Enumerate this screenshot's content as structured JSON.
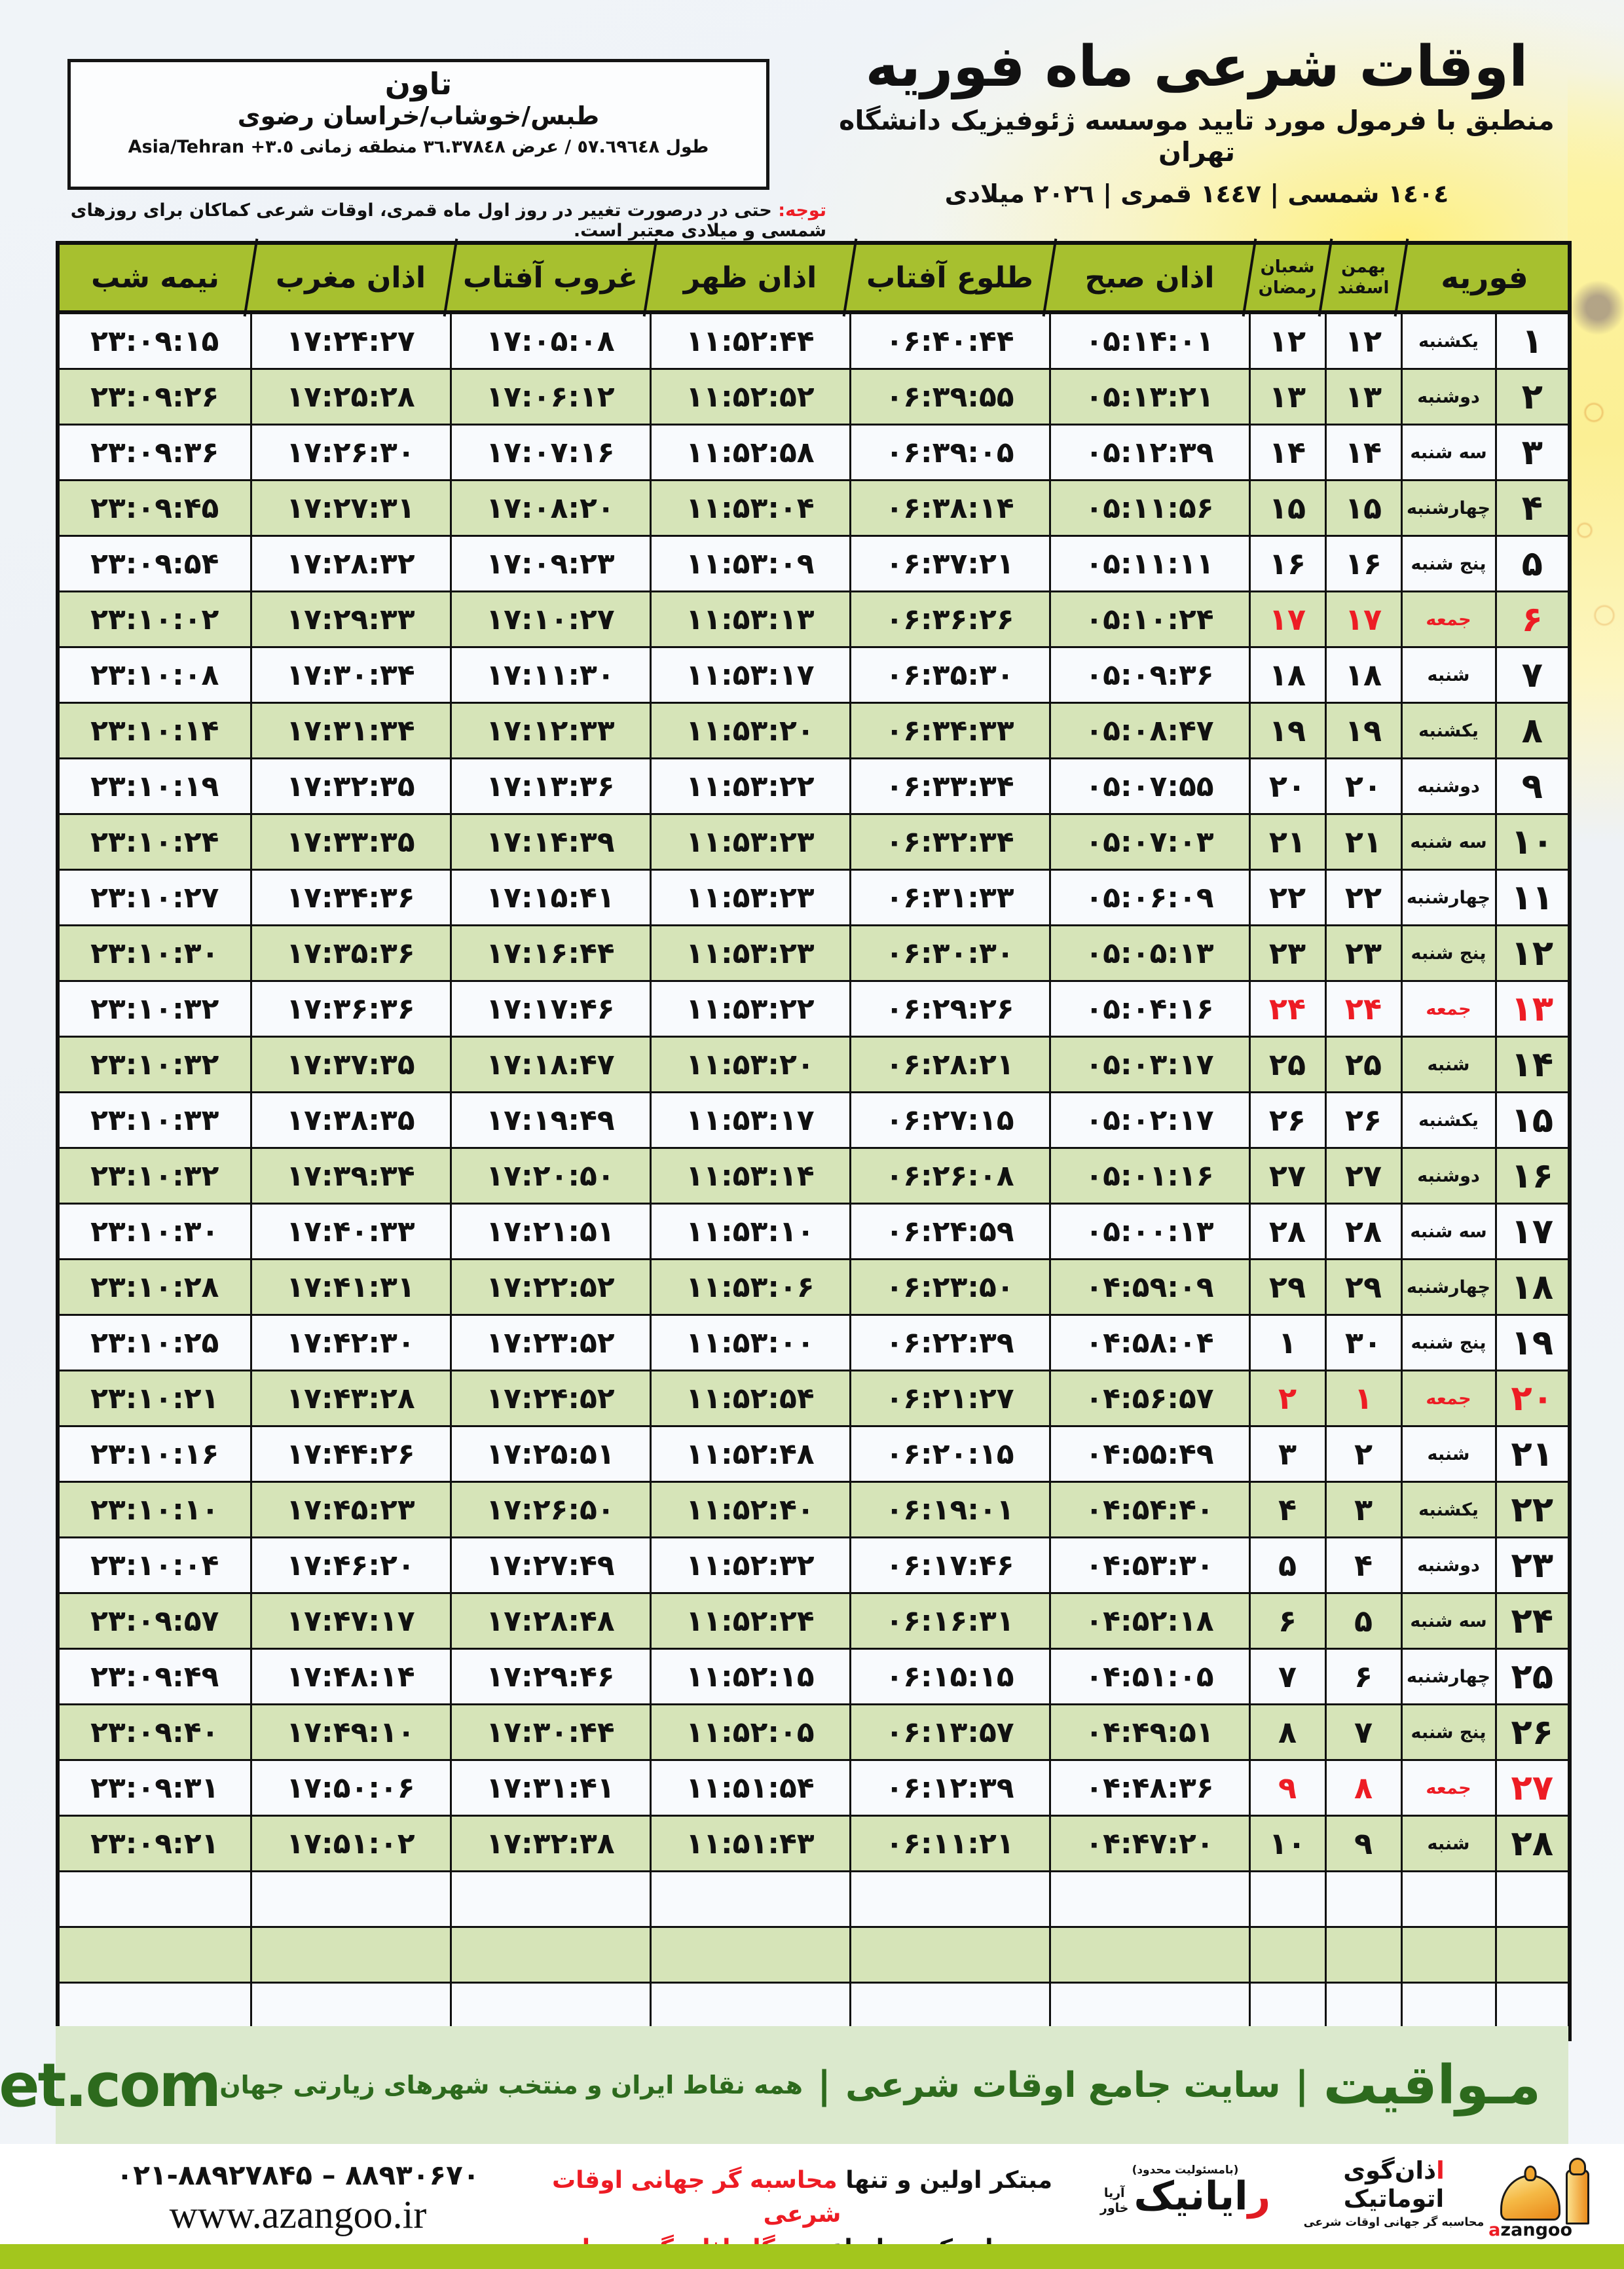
{
  "location_box": {
    "name": "تاون",
    "region": "طبس/خوشاب/خراسان رضوی",
    "geo_fa": "طول ٥٧.٦٩٦٤٨ / عرض ٣٦.٣٧٨٤٨ منطقه زمانی",
    "geo_tz": "Asia/Tehran +٣.٥"
  },
  "masthead": {
    "title": "اوقات شرعی ماه فوریه",
    "subtitle": "منطبق با فرمول مورد تایید موسسه ژئوفیزیک دانشگاه تهران",
    "dates": "١٤٠٤ شمسی | ١٤٤٧ قمری | ٢٠٢٦ میلادی"
  },
  "notice": {
    "label": "توجه:",
    "text": "حتی در درصورت تغییر در روز اول ماه قمری، اوقات شرعی کماکان برای روزهای شمسی و میلادی معتبر است."
  },
  "table": {
    "headers": {
      "february": "فوریه",
      "jalali_top": "بهمن",
      "jalali_bottom": "اسفند",
      "hijri_top": "شعبان",
      "hijri_bottom": "رمضان",
      "fajr": "اذان صبح",
      "sunrise": "طلوع آفتاب",
      "dhuhr": "اذان ظهر",
      "sunset": "غروب آفتاب",
      "maghrib": "اذان مغرب",
      "midnight": "نیمه شب"
    },
    "column_keys": [
      {
        "key": "feb",
        "cls": "c-feb"
      },
      {
        "key": "day",
        "cls": "c-day"
      },
      {
        "key": "jalali",
        "cls": "c-num"
      },
      {
        "key": "hijri",
        "cls": "c-num"
      },
      {
        "key": "fajr",
        "cls": "c-time"
      },
      {
        "key": "sunrise",
        "cls": "c-time"
      },
      {
        "key": "dhuhr",
        "cls": "c-time"
      },
      {
        "key": "sunset",
        "cls": "c-time"
      },
      {
        "key": "maghrib",
        "cls": "c-time"
      },
      {
        "key": "midnight",
        "cls": "c-time"
      }
    ],
    "empty_rows": 3,
    "rows": [
      {
        "feb": "۱",
        "day": "یکشنبه",
        "jalali": "۱۲",
        "hijri": "۱۲",
        "fajr": "۰۵:۱۴:۰۱",
        "sunrise": "۰۶:۴۰:۴۴",
        "dhuhr": "۱۱:۵۲:۴۴",
        "sunset": "۱۷:۰۵:۰۸",
        "maghrib": "۱۷:۲۴:۲۷",
        "midnight": "۲۳:۰۹:۱۵",
        "friday": false
      },
      {
        "feb": "۲",
        "day": "دوشنبه",
        "jalali": "۱۳",
        "hijri": "۱۳",
        "fajr": "۰۵:۱۳:۲۱",
        "sunrise": "۰۶:۳۹:۵۵",
        "dhuhr": "۱۱:۵۲:۵۲",
        "sunset": "۱۷:۰۶:۱۲",
        "maghrib": "۱۷:۲۵:۲۸",
        "midnight": "۲۳:۰۹:۲۶",
        "friday": false
      },
      {
        "feb": "۳",
        "day": "سه شنبه",
        "jalali": "۱۴",
        "hijri": "۱۴",
        "fajr": "۰۵:۱۲:۳۹",
        "sunrise": "۰۶:۳۹:۰۵",
        "dhuhr": "۱۱:۵۲:۵۸",
        "sunset": "۱۷:۰۷:۱۶",
        "maghrib": "۱۷:۲۶:۳۰",
        "midnight": "۲۳:۰۹:۳۶",
        "friday": false
      },
      {
        "feb": "۴",
        "day": "چهارشنبه",
        "jalali": "۱۵",
        "hijri": "۱۵",
        "fajr": "۰۵:۱۱:۵۶",
        "sunrise": "۰۶:۳۸:۱۴",
        "dhuhr": "۱۱:۵۳:۰۴",
        "sunset": "۱۷:۰۸:۲۰",
        "maghrib": "۱۷:۲۷:۳۱",
        "midnight": "۲۳:۰۹:۴۵",
        "friday": false
      },
      {
        "feb": "۵",
        "day": "پنج شنبه",
        "jalali": "۱۶",
        "hijri": "۱۶",
        "fajr": "۰۵:۱۱:۱۱",
        "sunrise": "۰۶:۳۷:۲۱",
        "dhuhr": "۱۱:۵۳:۰۹",
        "sunset": "۱۷:۰۹:۲۳",
        "maghrib": "۱۷:۲۸:۳۲",
        "midnight": "۲۳:۰۹:۵۴",
        "friday": false
      },
      {
        "feb": "۶",
        "day": "جمعه",
        "jalali": "۱۷",
        "hijri": "۱۷",
        "fajr": "۰۵:۱۰:۲۴",
        "sunrise": "۰۶:۳۶:۲۶",
        "dhuhr": "۱۱:۵۳:۱۳",
        "sunset": "۱۷:۱۰:۲۷",
        "maghrib": "۱۷:۲۹:۳۳",
        "midnight": "۲۳:۱۰:۰۲",
        "friday": true
      },
      {
        "feb": "۷",
        "day": "شنبه",
        "jalali": "۱۸",
        "hijri": "۱۸",
        "fajr": "۰۵:۰۹:۳۶",
        "sunrise": "۰۶:۳۵:۳۰",
        "dhuhr": "۱۱:۵۳:۱۷",
        "sunset": "۱۷:۱۱:۳۰",
        "maghrib": "۱۷:۳۰:۳۴",
        "midnight": "۲۳:۱۰:۰۸",
        "friday": false
      },
      {
        "feb": "۸",
        "day": "یکشنبه",
        "jalali": "۱۹",
        "hijri": "۱۹",
        "fajr": "۰۵:۰۸:۴۷",
        "sunrise": "۰۶:۳۴:۳۳",
        "dhuhr": "۱۱:۵۳:۲۰",
        "sunset": "۱۷:۱۲:۳۳",
        "maghrib": "۱۷:۳۱:۳۴",
        "midnight": "۲۳:۱۰:۱۴",
        "friday": false
      },
      {
        "feb": "۹",
        "day": "دوشنبه",
        "jalali": "۲۰",
        "hijri": "۲۰",
        "fajr": "۰۵:۰۷:۵۵",
        "sunrise": "۰۶:۳۳:۳۴",
        "dhuhr": "۱۱:۵۳:۲۲",
        "sunset": "۱۷:۱۳:۳۶",
        "maghrib": "۱۷:۳۲:۳۵",
        "midnight": "۲۳:۱۰:۱۹",
        "friday": false
      },
      {
        "feb": "۱۰",
        "day": "سه شنبه",
        "jalali": "۲۱",
        "hijri": "۲۱",
        "fajr": "۰۵:۰۷:۰۳",
        "sunrise": "۰۶:۳۲:۳۴",
        "dhuhr": "۱۱:۵۳:۲۳",
        "sunset": "۱۷:۱۴:۳۹",
        "maghrib": "۱۷:۳۳:۳۵",
        "midnight": "۲۳:۱۰:۲۴",
        "friday": false
      },
      {
        "feb": "۱۱",
        "day": "چهارشنبه",
        "jalali": "۲۲",
        "hijri": "۲۲",
        "fajr": "۰۵:۰۶:۰۹",
        "sunrise": "۰۶:۳۱:۳۳",
        "dhuhr": "۱۱:۵۳:۲۳",
        "sunset": "۱۷:۱۵:۴۱",
        "maghrib": "۱۷:۳۴:۳۶",
        "midnight": "۲۳:۱۰:۲۷",
        "friday": false
      },
      {
        "feb": "۱۲",
        "day": "پنج شنبه",
        "jalali": "۲۳",
        "hijri": "۲۳",
        "fajr": "۰۵:۰۵:۱۳",
        "sunrise": "۰۶:۳۰:۳۰",
        "dhuhr": "۱۱:۵۳:۲۳",
        "sunset": "۱۷:۱۶:۴۴",
        "maghrib": "۱۷:۳۵:۳۶",
        "midnight": "۲۳:۱۰:۳۰",
        "friday": false
      },
      {
        "feb": "۱۳",
        "day": "جمعه",
        "jalali": "۲۴",
        "hijri": "۲۴",
        "fajr": "۰۵:۰۴:۱۶",
        "sunrise": "۰۶:۲۹:۲۶",
        "dhuhr": "۱۱:۵۳:۲۲",
        "sunset": "۱۷:۱۷:۴۶",
        "maghrib": "۱۷:۳۶:۳۶",
        "midnight": "۲۳:۱۰:۳۲",
        "friday": true
      },
      {
        "feb": "۱۴",
        "day": "شنبه",
        "jalali": "۲۵",
        "hijri": "۲۵",
        "fajr": "۰۵:۰۳:۱۷",
        "sunrise": "۰۶:۲۸:۲۱",
        "dhuhr": "۱۱:۵۳:۲۰",
        "sunset": "۱۷:۱۸:۴۷",
        "maghrib": "۱۷:۳۷:۳۵",
        "midnight": "۲۳:۱۰:۳۲",
        "friday": false
      },
      {
        "feb": "۱۵",
        "day": "یکشنبه",
        "jalali": "۲۶",
        "hijri": "۲۶",
        "fajr": "۰۵:۰۲:۱۷",
        "sunrise": "۰۶:۲۷:۱۵",
        "dhuhr": "۱۱:۵۳:۱۷",
        "sunset": "۱۷:۱۹:۴۹",
        "maghrib": "۱۷:۳۸:۳۵",
        "midnight": "۲۳:۱۰:۳۳",
        "friday": false
      },
      {
        "feb": "۱۶",
        "day": "دوشنبه",
        "jalali": "۲۷",
        "hijri": "۲۷",
        "fajr": "۰۵:۰۱:۱۶",
        "sunrise": "۰۶:۲۶:۰۸",
        "dhuhr": "۱۱:۵۳:۱۴",
        "sunset": "۱۷:۲۰:۵۰",
        "maghrib": "۱۷:۳۹:۳۴",
        "midnight": "۲۳:۱۰:۳۲",
        "friday": false
      },
      {
        "feb": "۱۷",
        "day": "سه شنبه",
        "jalali": "۲۸",
        "hijri": "۲۸",
        "fajr": "۰۵:۰۰:۱۳",
        "sunrise": "۰۶:۲۴:۵۹",
        "dhuhr": "۱۱:۵۳:۱۰",
        "sunset": "۱۷:۲۱:۵۱",
        "maghrib": "۱۷:۴۰:۳۳",
        "midnight": "۲۳:۱۰:۳۰",
        "friday": false
      },
      {
        "feb": "۱۸",
        "day": "چهارشنبه",
        "jalali": "۲۹",
        "hijri": "۲۹",
        "fajr": "۰۴:۵۹:۰۹",
        "sunrise": "۰۶:۲۳:۵۰",
        "dhuhr": "۱۱:۵۳:۰۶",
        "sunset": "۱۷:۲۲:۵۲",
        "maghrib": "۱۷:۴۱:۳۱",
        "midnight": "۲۳:۱۰:۲۸",
        "friday": false
      },
      {
        "feb": "۱۹",
        "day": "پنج شنبه",
        "jalali": "۳۰",
        "hijri": "۱",
        "fajr": "۰۴:۵۸:۰۴",
        "sunrise": "۰۶:۲۲:۳۹",
        "dhuhr": "۱۱:۵۳:۰۰",
        "sunset": "۱۷:۲۳:۵۲",
        "maghrib": "۱۷:۴۲:۳۰",
        "midnight": "۲۳:۱۰:۲۵",
        "friday": false
      },
      {
        "feb": "۲۰",
        "day": "جمعه",
        "jalali": "۱",
        "hijri": "۲",
        "fajr": "۰۴:۵۶:۵۷",
        "sunrise": "۰۶:۲۱:۲۷",
        "dhuhr": "۱۱:۵۲:۵۴",
        "sunset": "۱۷:۲۴:۵۲",
        "maghrib": "۱۷:۴۳:۲۸",
        "midnight": "۲۳:۱۰:۲۱",
        "friday": true
      },
      {
        "feb": "۲۱",
        "day": "شنبه",
        "jalali": "۲",
        "hijri": "۳",
        "fajr": "۰۴:۵۵:۴۹",
        "sunrise": "۰۶:۲۰:۱۵",
        "dhuhr": "۱۱:۵۲:۴۸",
        "sunset": "۱۷:۲۵:۵۱",
        "maghrib": "۱۷:۴۴:۲۶",
        "midnight": "۲۳:۱۰:۱۶",
        "friday": false
      },
      {
        "feb": "۲۲",
        "day": "یکشنبه",
        "jalali": "۳",
        "hijri": "۴",
        "fajr": "۰۴:۵۴:۴۰",
        "sunrise": "۰۶:۱۹:۰۱",
        "dhuhr": "۱۱:۵۲:۴۰",
        "sunset": "۱۷:۲۶:۵۰",
        "maghrib": "۱۷:۴۵:۲۳",
        "midnight": "۲۳:۱۰:۱۰",
        "friday": false
      },
      {
        "feb": "۲۳",
        "day": "دوشنبه",
        "jalali": "۴",
        "hijri": "۵",
        "fajr": "۰۴:۵۳:۳۰",
        "sunrise": "۰۶:۱۷:۴۶",
        "dhuhr": "۱۱:۵۲:۳۲",
        "sunset": "۱۷:۲۷:۴۹",
        "maghrib": "۱۷:۴۶:۲۰",
        "midnight": "۲۳:۱۰:۰۴",
        "friday": false
      },
      {
        "feb": "۲۴",
        "day": "سه شنبه",
        "jalali": "۵",
        "hijri": "۶",
        "fajr": "۰۴:۵۲:۱۸",
        "sunrise": "۰۶:۱۶:۳۱",
        "dhuhr": "۱۱:۵۲:۲۴",
        "sunset": "۱۷:۲۸:۴۸",
        "maghrib": "۱۷:۴۷:۱۷",
        "midnight": "۲۳:۰۹:۵۷",
        "friday": false
      },
      {
        "feb": "۲۵",
        "day": "چهارشنبه",
        "jalali": "۶",
        "hijri": "۷",
        "fajr": "۰۴:۵۱:۰۵",
        "sunrise": "۰۶:۱۵:۱۵",
        "dhuhr": "۱۱:۵۲:۱۵",
        "sunset": "۱۷:۲۹:۴۶",
        "maghrib": "۱۷:۴۸:۱۴",
        "midnight": "۲۳:۰۹:۴۹",
        "friday": false
      },
      {
        "feb": "۲۶",
        "day": "پنج شنبه",
        "jalali": "۷",
        "hijri": "۸",
        "fajr": "۰۴:۴۹:۵۱",
        "sunrise": "۰۶:۱۳:۵۷",
        "dhuhr": "۱۱:۵۲:۰۵",
        "sunset": "۱۷:۳۰:۴۴",
        "maghrib": "۱۷:۴۹:۱۰",
        "midnight": "۲۳:۰۹:۴۰",
        "friday": false
      },
      {
        "feb": "۲۷",
        "day": "جمعه",
        "jalali": "۸",
        "hijri": "۹",
        "fajr": "۰۴:۴۸:۳۶",
        "sunrise": "۰۶:۱۲:۳۹",
        "dhuhr": "۱۱:۵۱:۵۴",
        "sunset": "۱۷:۳۱:۴۱",
        "maghrib": "۱۷:۵۰:۰۶",
        "midnight": "۲۳:۰۹:۳۱",
        "friday": true
      },
      {
        "feb": "۲۸",
        "day": "شنبه",
        "jalali": "۹",
        "hijri": "۱۰",
        "fajr": "۰۴:۴۷:۲۰",
        "sunrise": "۰۶:۱۱:۲۱",
        "dhuhr": "۱۱:۵۱:۴۳",
        "sunset": "۱۷:۳۲:۳۸",
        "maghrib": "۱۷:۵۱:۰۲",
        "midnight": "۲۳:۰۹:۲۱",
        "friday": false
      }
    ]
  },
  "mavaqeet_band": {
    "brand": "مـواقیت",
    "separator": "|",
    "site_label": "سایت جامع اوقات شرعی",
    "coverage": "همه نقاط ایران و منتخب شهرهای زیارتی جهان",
    "domain": "mavaqeet.com"
  },
  "footer": {
    "phones": "۰۲۱-۸۸۹۲۷۸۴۵ – ۸۸۹۳۰۶۷۰",
    "website": "www.azangoo.ir",
    "line1_black": "مبتکر اولین و تنها",
    "line1_red": "محاسبه گر جهانی اوقات شرعی",
    "line2_black": "و تولید کننده انواع",
    "line2_red": "دستگاه اذان گوی تمام خودکار ماهواره ای",
    "rayanik_note": "(بامسئولیت محدود)",
    "rayanik_name_first": "ر",
    "rayanik_name_rest": "ایانیک",
    "rayanik_sub1": "آریا",
    "rayanik_sub2": "خاور",
    "azangoo_fa_first": "ا",
    "azangoo_fa_rest": "ذان‌گوی اتوماتیک",
    "azangoo_tagline": "محاسبه گر جهانی اوقات شرعی",
    "azangoo_latin_a": "a",
    "azangoo_latin_rest": "zangoo"
  },
  "colors": {
    "header_green": "#a7c02f",
    "row_green": "#d6e4b8",
    "friday_red": "#ed1c24",
    "band_bg": "#dbe9cd",
    "band_text": "#2d6a1d",
    "bottom_band": "#a3c61d"
  }
}
